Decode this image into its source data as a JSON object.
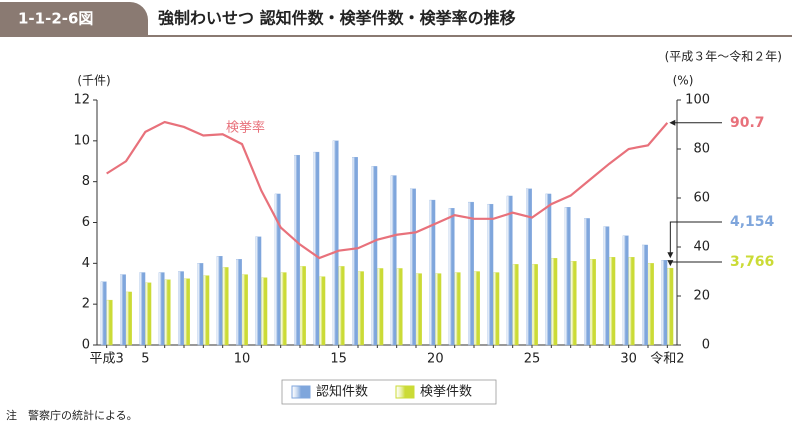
{
  "chart_data": {
    "type": "bar",
    "figure_number": "1-1-2-6図",
    "title": "強制わいせつ 認知件数・検挙件数・検挙率の推移",
    "subtitle": "(平成３年～令和２年)",
    "ylabel": "(千件)",
    "y2label": "(%)",
    "note": "注　警察庁の統計による。",
    "categories": [
      "平成3",
      null,
      "5",
      null,
      null,
      null,
      null,
      "10",
      null,
      null,
      null,
      null,
      "15",
      null,
      null,
      null,
      null,
      "20",
      null,
      null,
      null,
      null,
      "25",
      null,
      null,
      null,
      null,
      "30",
      null,
      "令和2"
    ],
    "series": [
      {
        "name": "認知件数",
        "type": "bar",
        "color": "#7fa6dc",
        "values": [
          3.1,
          3.45,
          3.55,
          3.55,
          3.6,
          4.0,
          4.35,
          4.2,
          5.3,
          7.4,
          9.3,
          9.45,
          10.0,
          9.2,
          8.75,
          8.3,
          7.65,
          7.1,
          6.7,
          7.0,
          6.9,
          7.3,
          7.65,
          7.4,
          6.75,
          6.2,
          5.8,
          5.35,
          4.9,
          4.154
        ],
        "value_labels": [
          null,
          null,
          null,
          null,
          null,
          null,
          null,
          null,
          null,
          null,
          null,
          null,
          null,
          null,
          null,
          null,
          null,
          null,
          null,
          null,
          null,
          null,
          null,
          null,
          null,
          null,
          null,
          null,
          null,
          "4,154"
        ]
      },
      {
        "name": "検挙件数",
        "type": "bar",
        "color": "#cbdb36",
        "values": [
          2.2,
          2.6,
          3.05,
          3.2,
          3.25,
          3.4,
          3.8,
          3.45,
          3.3,
          3.55,
          3.85,
          3.35,
          3.85,
          3.6,
          3.75,
          3.75,
          3.5,
          3.5,
          3.55,
          3.6,
          3.55,
          3.95,
          3.95,
          4.25,
          4.1,
          4.2,
          4.3,
          4.3,
          4.0,
          3.766
        ],
        "value_labels": [
          null,
          null,
          null,
          null,
          null,
          null,
          null,
          null,
          null,
          null,
          null,
          null,
          null,
          null,
          null,
          null,
          null,
          null,
          null,
          null,
          null,
          null,
          null,
          null,
          null,
          null,
          null,
          null,
          null,
          "3,766"
        ]
      },
      {
        "name": "検挙率",
        "type": "line",
        "axis": "y2",
        "color": "#e8717b",
        "values": [
          70,
          75,
          87,
          91,
          89,
          85.5,
          86,
          82,
          63,
          48,
          41,
          35.5,
          38.5,
          39.5,
          43,
          45,
          46,
          49.5,
          53,
          51.5,
          51.5,
          54,
          52,
          57.5,
          61,
          67.5,
          74,
          80,
          81.5,
          90.7
        ],
        "value_labels": [
          null,
          null,
          null,
          null,
          null,
          null,
          null,
          null,
          null,
          null,
          null,
          null,
          null,
          null,
          null,
          null,
          null,
          null,
          null,
          null,
          null,
          null,
          null,
          null,
          null,
          null,
          null,
          null,
          null,
          "90.7"
        ]
      }
    ],
    "ylim": [
      0,
      12
    ],
    "yticks": [
      0,
      2,
      4,
      6,
      8,
      10,
      12
    ],
    "y2lim": [
      0,
      100
    ],
    "y2ticks": [
      0,
      20,
      40,
      60,
      80,
      100
    ],
    "grid": false,
    "legend": "bottom"
  }
}
